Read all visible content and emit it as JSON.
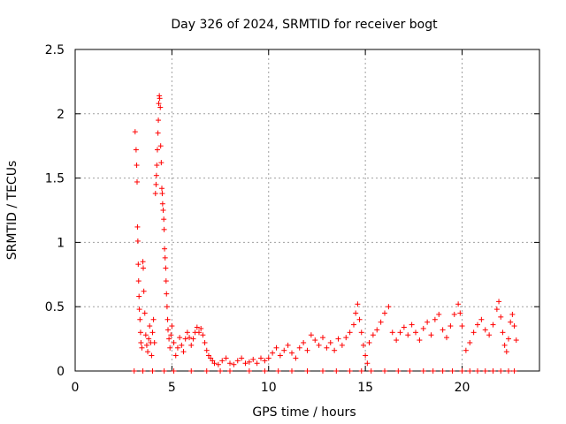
{
  "chart_data": {
    "type": "scatter",
    "title": "Day 326 of 2024, SRMTID for receiver bogt",
    "xlabel": "GPS time / hours",
    "ylabel": "SRMTID / TECUs",
    "xlim": [
      0,
      24
    ],
    "ylim": [
      0,
      2.5
    ],
    "grid": true,
    "marker": "plus",
    "color": "#ff0000",
    "x_ticks": [
      0,
      5,
      10,
      15,
      20
    ],
    "x_tick_labels": [
      "0",
      "5",
      "10",
      "15",
      "20"
    ],
    "y_ticks": [
      0,
      0.5,
      1,
      1.5,
      2,
      2.5
    ],
    "y_tick_labels": [
      "0",
      "0.5",
      "1",
      "1.5",
      "2",
      "2.5"
    ],
    "series": [
      {
        "name": "SRMTID",
        "points": [
          [
            3.1,
            1.86
          ],
          [
            3.15,
            1.72
          ],
          [
            3.18,
            1.6
          ],
          [
            3.2,
            1.47
          ],
          [
            3.22,
            1.12
          ],
          [
            3.24,
            1.01
          ],
          [
            3.26,
            0.83
          ],
          [
            3.28,
            0.7
          ],
          [
            3.3,
            0.58
          ],
          [
            3.32,
            0.48
          ],
          [
            3.35,
            0.4
          ],
          [
            3.38,
            0.3
          ],
          [
            3.4,
            0.22
          ],
          [
            3.45,
            0.18
          ],
          [
            3.5,
            0.85
          ],
          [
            3.52,
            0.8
          ],
          [
            3.55,
            0.62
          ],
          [
            3.6,
            0.45
          ],
          [
            3.65,
            0.28
          ],
          [
            3.7,
            0.2
          ],
          [
            3.75,
            0.15
          ],
          [
            3.8,
            0.25
          ],
          [
            3.85,
            0.35
          ],
          [
            3.9,
            0.22
          ],
          [
            3.95,
            0.12
          ],
          [
            4.0,
            0.3
          ],
          [
            4.05,
            0.4
          ],
          [
            4.1,
            0.22
          ],
          [
            4.15,
            1.38
          ],
          [
            4.18,
            1.45
          ],
          [
            4.2,
            1.52
          ],
          [
            4.22,
            1.6
          ],
          [
            4.25,
            1.72
          ],
          [
            4.28,
            1.85
          ],
          [
            4.3,
            1.95
          ],
          [
            4.32,
            2.08
          ],
          [
            4.35,
            2.14
          ],
          [
            4.37,
            2.12
          ],
          [
            4.4,
            2.05
          ],
          [
            4.42,
            1.75
          ],
          [
            4.45,
            1.62
          ],
          [
            4.48,
            1.42
          ],
          [
            4.5,
            1.38
          ],
          [
            4.52,
            1.3
          ],
          [
            4.55,
            1.25
          ],
          [
            4.58,
            1.18
          ],
          [
            4.6,
            1.1
          ],
          [
            4.62,
            0.95
          ],
          [
            4.65,
            0.88
          ],
          [
            4.68,
            0.8
          ],
          [
            4.7,
            0.7
          ],
          [
            4.72,
            0.6
          ],
          [
            4.75,
            0.5
          ],
          [
            4.78,
            0.4
          ],
          [
            4.8,
            0.32
          ],
          [
            4.85,
            0.25
          ],
          [
            4.9,
            0.18
          ],
          [
            4.95,
            0.28
          ],
          [
            5.0,
            0.35
          ],
          [
            5.1,
            0.22
          ],
          [
            5.2,
            0.12
          ],
          [
            5.3,
            0.18
          ],
          [
            5.4,
            0.26
          ],
          [
            5.5,
            0.2
          ],
          [
            5.6,
            0.15
          ],
          [
            5.7,
            0.25
          ],
          [
            5.8,
            0.3
          ],
          [
            5.9,
            0.26
          ],
          [
            6.0,
            0.2
          ],
          [
            6.1,
            0.25
          ],
          [
            6.2,
            0.3
          ],
          [
            6.3,
            0.34
          ],
          [
            6.4,
            0.3
          ],
          [
            6.5,
            0.33
          ],
          [
            6.6,
            0.28
          ],
          [
            6.7,
            0.22
          ],
          [
            6.8,
            0.16
          ],
          [
            6.9,
            0.12
          ],
          [
            7.0,
            0.1
          ],
          [
            7.1,
            0.08
          ],
          [
            7.2,
            0.06
          ],
          [
            7.4,
            0.05
          ],
          [
            7.6,
            0.08
          ],
          [
            7.8,
            0.1
          ],
          [
            8.0,
            0.06
          ],
          [
            8.2,
            0.05
          ],
          [
            8.4,
            0.08
          ],
          [
            8.6,
            0.1
          ],
          [
            8.8,
            0.06
          ],
          [
            9.0,
            0.07
          ],
          [
            9.2,
            0.09
          ],
          [
            9.4,
            0.06
          ],
          [
            9.6,
            0.1
          ],
          [
            9.8,
            0.08
          ],
          [
            10.0,
            0.1
          ],
          [
            10.2,
            0.14
          ],
          [
            10.4,
            0.18
          ],
          [
            10.6,
            0.12
          ],
          [
            10.8,
            0.16
          ],
          [
            11.0,
            0.2
          ],
          [
            11.2,
            0.14
          ],
          [
            11.4,
            0.1
          ],
          [
            11.6,
            0.18
          ],
          [
            11.8,
            0.22
          ],
          [
            12.0,
            0.16
          ],
          [
            12.2,
            0.28
          ],
          [
            12.4,
            0.24
          ],
          [
            12.6,
            0.2
          ],
          [
            12.8,
            0.26
          ],
          [
            13.0,
            0.18
          ],
          [
            13.2,
            0.22
          ],
          [
            13.4,
            0.16
          ],
          [
            13.6,
            0.25
          ],
          [
            13.8,
            0.2
          ],
          [
            14.0,
            0.26
          ],
          [
            14.2,
            0.3
          ],
          [
            14.4,
            0.36
          ],
          [
            14.5,
            0.45
          ],
          [
            14.6,
            0.52
          ],
          [
            14.7,
            0.4
          ],
          [
            14.8,
            0.3
          ],
          [
            14.9,
            0.2
          ],
          [
            15.0,
            0.12
          ],
          [
            15.1,
            0.06
          ],
          [
            15.2,
            0.22
          ],
          [
            15.4,
            0.28
          ],
          [
            15.6,
            0.32
          ],
          [
            15.8,
            0.38
          ],
          [
            16.0,
            0.45
          ],
          [
            16.2,
            0.5
          ],
          [
            16.4,
            0.3
          ],
          [
            16.6,
            0.24
          ],
          [
            16.8,
            0.3
          ],
          [
            17.0,
            0.34
          ],
          [
            17.2,
            0.28
          ],
          [
            17.4,
            0.36
          ],
          [
            17.6,
            0.3
          ],
          [
            17.8,
            0.24
          ],
          [
            18.0,
            0.33
          ],
          [
            18.2,
            0.38
          ],
          [
            18.4,
            0.28
          ],
          [
            18.6,
            0.4
          ],
          [
            18.8,
            0.44
          ],
          [
            19.0,
            0.32
          ],
          [
            19.2,
            0.26
          ],
          [
            19.4,
            0.35
          ],
          [
            19.6,
            0.44
          ],
          [
            19.8,
            0.52
          ],
          [
            19.9,
            0.45
          ],
          [
            20.0,
            0.35
          ],
          [
            20.2,
            0.16
          ],
          [
            20.4,
            0.22
          ],
          [
            20.6,
            0.3
          ],
          [
            20.8,
            0.36
          ],
          [
            21.0,
            0.4
          ],
          [
            21.2,
            0.32
          ],
          [
            21.4,
            0.28
          ],
          [
            21.6,
            0.36
          ],
          [
            21.8,
            0.48
          ],
          [
            21.9,
            0.54
          ],
          [
            22.0,
            0.42
          ],
          [
            22.1,
            0.3
          ],
          [
            22.2,
            0.2
          ],
          [
            22.3,
            0.15
          ],
          [
            22.4,
            0.25
          ],
          [
            22.5,
            0.38
          ],
          [
            22.6,
            0.44
          ],
          [
            22.7,
            0.35
          ],
          [
            22.8,
            0.24
          ],
          [
            3.05,
            0.0
          ],
          [
            3.5,
            0.0
          ],
          [
            4.0,
            0.0
          ],
          [
            4.6,
            0.0
          ],
          [
            5.1,
            0.0
          ],
          [
            6.0,
            0.0
          ],
          [
            6.8,
            0.0
          ],
          [
            7.5,
            0.0
          ],
          [
            8.0,
            0.0
          ],
          [
            9.0,
            0.0
          ],
          [
            9.8,
            0.0
          ],
          [
            10.5,
            0.0
          ],
          [
            11.2,
            0.0
          ],
          [
            12.0,
            0.0
          ],
          [
            12.8,
            0.0
          ],
          [
            13.5,
            0.0
          ],
          [
            14.2,
            0.0
          ],
          [
            14.8,
            0.0
          ],
          [
            15.3,
            0.0
          ],
          [
            16.0,
            0.0
          ],
          [
            16.7,
            0.0
          ],
          [
            17.3,
            0.0
          ],
          [
            18.0,
            0.0
          ],
          [
            18.5,
            0.0
          ],
          [
            19.0,
            0.0
          ],
          [
            19.5,
            0.0
          ],
          [
            20.0,
            0.0
          ],
          [
            20.4,
            0.0
          ],
          [
            20.8,
            0.0
          ],
          [
            21.2,
            0.0
          ],
          [
            21.6,
            0.0
          ],
          [
            22.0,
            0.0
          ],
          [
            22.4,
            0.0
          ],
          [
            22.7,
            0.0
          ]
        ]
      }
    ]
  }
}
